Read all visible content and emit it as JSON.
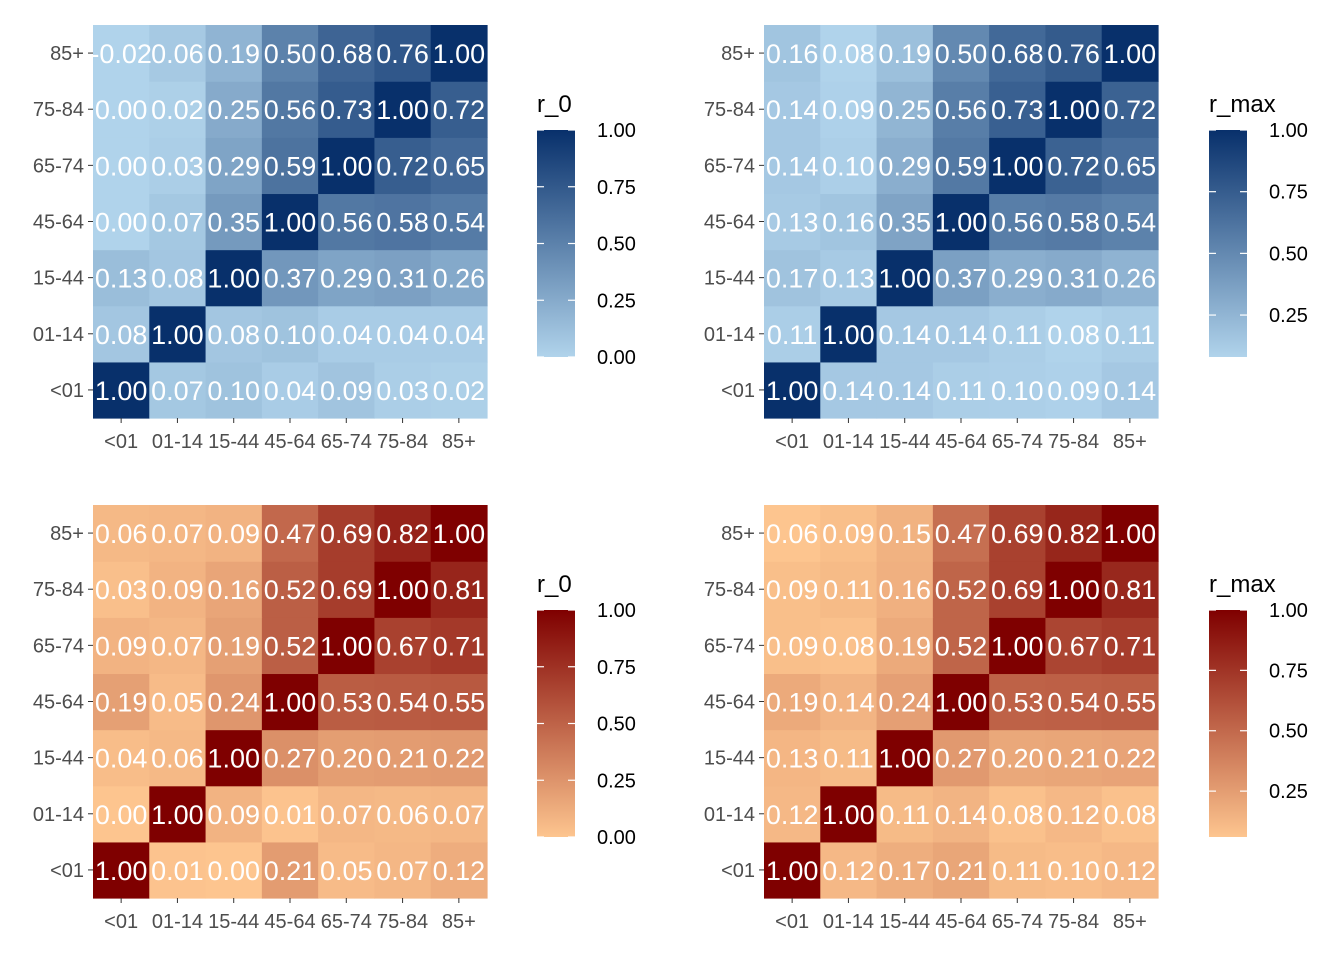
{
  "chart_data": [
    {
      "type": "heatmap",
      "categories": [
        "<01",
        "01-14",
        "15-44",
        "45-64",
        "65-74",
        "75-84",
        "85+"
      ],
      "x_categories": [
        "<01",
        "01-14",
        "15-44",
        "45-64",
        "65-74",
        "75-84",
        "85+"
      ],
      "y_categories": [
        "<01",
        "01-14",
        "15-44",
        "45-64",
        "65-74",
        "75-84",
        "85+"
      ],
      "values": [
        [
          1.0,
          0.07,
          0.1,
          0.04,
          0.09,
          0.03,
          0.02
        ],
        [
          0.08,
          1.0,
          0.08,
          0.1,
          0.04,
          0.04,
          0.04
        ],
        [
          0.13,
          0.08,
          1.0,
          0.37,
          0.29,
          0.31,
          0.26
        ],
        [
          0.0,
          0.07,
          0.35,
          1.0,
          0.56,
          0.58,
          0.54
        ],
        [
          0.0,
          0.03,
          0.29,
          0.59,
          1.0,
          0.72,
          0.65
        ],
        [
          0.0,
          0.02,
          0.25,
          0.56,
          0.73,
          1.0,
          0.72
        ],
        [
          -0.02,
          0.06,
          0.19,
          0.5,
          0.68,
          0.76,
          1.0
        ]
      ],
      "legend": {
        "title": "r_0",
        "ticks": [
          0.0,
          0.25,
          0.5,
          0.75,
          1.0
        ],
        "tick_labels": [
          "0.00",
          "0.25",
          "0.50",
          "0.75",
          "1.00"
        ],
        "range": [
          0,
          1
        ]
      },
      "colors": {
        "low": "#b0d3eb",
        "high": "#08306b"
      },
      "xlabel": "",
      "ylabel": ""
    },
    {
      "type": "heatmap",
      "categories": [
        "<01",
        "01-14",
        "15-44",
        "45-64",
        "65-74",
        "75-84",
        "85+"
      ],
      "x_categories": [
        "<01",
        "01-14",
        "15-44",
        "45-64",
        "65-74",
        "75-84",
        "85+"
      ],
      "y_categories": [
        "<01",
        "01-14",
        "15-44",
        "45-64",
        "65-74",
        "75-84",
        "85+"
      ],
      "values": [
        [
          1.0,
          0.14,
          0.14,
          0.11,
          0.1,
          0.09,
          0.14
        ],
        [
          0.11,
          1.0,
          0.14,
          0.14,
          0.11,
          0.08,
          0.11
        ],
        [
          0.17,
          0.13,
          1.0,
          0.37,
          0.29,
          0.31,
          0.26
        ],
        [
          0.13,
          0.16,
          0.35,
          1.0,
          0.56,
          0.58,
          0.54
        ],
        [
          0.14,
          0.1,
          0.29,
          0.59,
          1.0,
          0.72,
          0.65
        ],
        [
          0.14,
          0.09,
          0.25,
          0.56,
          0.73,
          1.0,
          0.72
        ],
        [
          0.16,
          0.08,
          0.19,
          0.5,
          0.68,
          0.76,
          1.0
        ]
      ],
      "legend": {
        "title": "r_max",
        "ticks": [
          0.25,
          0.5,
          0.75,
          1.0
        ],
        "tick_labels": [
          "0.25",
          "0.50",
          "0.75",
          "1.00"
        ],
        "range": [
          0.08,
          1
        ]
      },
      "colors": {
        "low": "#b0d3eb",
        "high": "#08306b"
      },
      "xlabel": "",
      "ylabel": ""
    },
    {
      "type": "heatmap",
      "categories": [
        "<01",
        "01-14",
        "15-44",
        "45-64",
        "65-74",
        "75-84",
        "85+"
      ],
      "x_categories": [
        "<01",
        "01-14",
        "15-44",
        "45-64",
        "65-74",
        "75-84",
        "85+"
      ],
      "y_categories": [
        "<01",
        "01-14",
        "15-44",
        "45-64",
        "65-74",
        "75-84",
        "85+"
      ],
      "values": [
        [
          1.0,
          0.01,
          0.0,
          0.21,
          0.05,
          0.07,
          0.12
        ],
        [
          0.0,
          1.0,
          0.09,
          0.01,
          0.07,
          0.06,
          0.07
        ],
        [
          0.04,
          0.06,
          1.0,
          0.27,
          0.2,
          0.21,
          0.22
        ],
        [
          0.19,
          0.05,
          0.24,
          1.0,
          0.53,
          0.54,
          0.55
        ],
        [
          0.09,
          0.07,
          0.19,
          0.52,
          1.0,
          0.67,
          0.71
        ],
        [
          0.03,
          0.09,
          0.16,
          0.52,
          0.69,
          1.0,
          0.81
        ],
        [
          0.06,
          0.07,
          0.09,
          0.47,
          0.69,
          0.82,
          1.0
        ]
      ],
      "legend": {
        "title": "r_0",
        "ticks": [
          0.0,
          0.25,
          0.5,
          0.75,
          1.0
        ],
        "tick_labels": [
          "0.00",
          "0.25",
          "0.50",
          "0.75",
          "1.00"
        ],
        "range": [
          0,
          1
        ]
      },
      "colors": {
        "low": "#fdc58f",
        "high": "#7f0000"
      },
      "xlabel": "",
      "ylabel": ""
    },
    {
      "type": "heatmap",
      "categories": [
        "<01",
        "01-14",
        "15-44",
        "45-64",
        "65-74",
        "75-84",
        "85+"
      ],
      "x_categories": [
        "<01",
        "01-14",
        "15-44",
        "45-64",
        "65-74",
        "75-84",
        "85+"
      ],
      "y_categories": [
        "<01",
        "01-14",
        "15-44",
        "45-64",
        "65-74",
        "75-84",
        "85+"
      ],
      "values": [
        [
          1.0,
          0.12,
          0.17,
          0.21,
          0.11,
          0.1,
          0.12
        ],
        [
          0.12,
          1.0,
          0.11,
          0.14,
          0.08,
          0.12,
          0.08
        ],
        [
          0.13,
          0.11,
          1.0,
          0.27,
          0.2,
          0.21,
          0.22
        ],
        [
          0.19,
          0.14,
          0.24,
          1.0,
          0.53,
          0.54,
          0.55
        ],
        [
          0.09,
          0.08,
          0.19,
          0.52,
          1.0,
          0.67,
          0.71
        ],
        [
          0.09,
          0.11,
          0.16,
          0.52,
          0.69,
          1.0,
          0.81
        ],
        [
          0.06,
          0.09,
          0.15,
          0.47,
          0.69,
          0.82,
          1.0
        ]
      ],
      "legend": {
        "title": "r_max",
        "ticks": [
          0.25,
          0.5,
          0.75,
          1.0
        ],
        "tick_labels": [
          "0.25",
          "0.50",
          "0.75",
          "1.00"
        ],
        "range": [
          0.06,
          1
        ]
      },
      "colors": {
        "low": "#fdc58f",
        "high": "#7f0000"
      },
      "xlabel": "",
      "ylabel": ""
    }
  ]
}
